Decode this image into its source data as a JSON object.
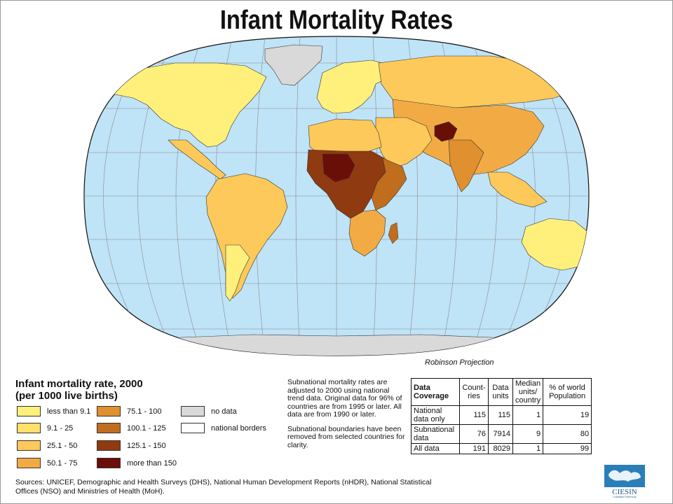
{
  "title": "Infant Mortality Rates",
  "projection_label": "Robinson Projection",
  "legend": {
    "title_line1": "Infant mortality rate, 2000",
    "title_line2": "(per 1000 live births)",
    "items": [
      {
        "label": "less than 9.1",
        "color": "#fff07c"
      },
      {
        "label": "9.1 - 25",
        "color": "#ffe06a"
      },
      {
        "label": "25.1 - 50",
        "color": "#fcc95a"
      },
      {
        "label": "50.1 - 75",
        "color": "#f2ab44"
      },
      {
        "label": "75.1 - 100",
        "color": "#e0902e"
      },
      {
        "label": "100.1 - 125",
        "color": "#c06d1e"
      },
      {
        "label": "125.1 - 150",
        "color": "#8f3a10"
      },
      {
        "label": "more than 150",
        "color": "#6a0f08"
      },
      {
        "label": "no data",
        "color": "#d9d9d9"
      },
      {
        "label": "national borders",
        "color": "#ffffff"
      }
    ]
  },
  "notes": {
    "p1": "Subnational mortality rates are adjusted to 2000 using national trend data.  Original data for 96% of countries are from 1995 or later.  All data are from 1990 or later.",
    "p2": "Subnational boundaries have been removed from selected countries for clarity."
  },
  "coverage_table": {
    "header": [
      "Data Coverage",
      "Count-ries",
      "Data units",
      "Median units/ country",
      "% of world Population"
    ],
    "rows": [
      {
        "label": "National data only",
        "values": [
          "115",
          "115",
          "1",
          "19"
        ]
      },
      {
        "label": "Subnational data",
        "values": [
          "76",
          "7914",
          "9",
          "80"
        ]
      },
      {
        "label": "All data",
        "values": [
          "191",
          "8029",
          "1",
          "99"
        ]
      }
    ]
  },
  "sources": "Sources: UNICEF, Demographic and Health Surveys (DHS), National Human Development Reports (nHDR), National Statistical Offices (NSO) and Ministries of Health (MoH).",
  "logo": {
    "text": "CIESIN",
    "subtext": "Columbia University"
  },
  "colors": {
    "ocean": "#bfe3f7",
    "graticule": "#8a8a8a",
    "antarctica": "#d9d9d9"
  }
}
